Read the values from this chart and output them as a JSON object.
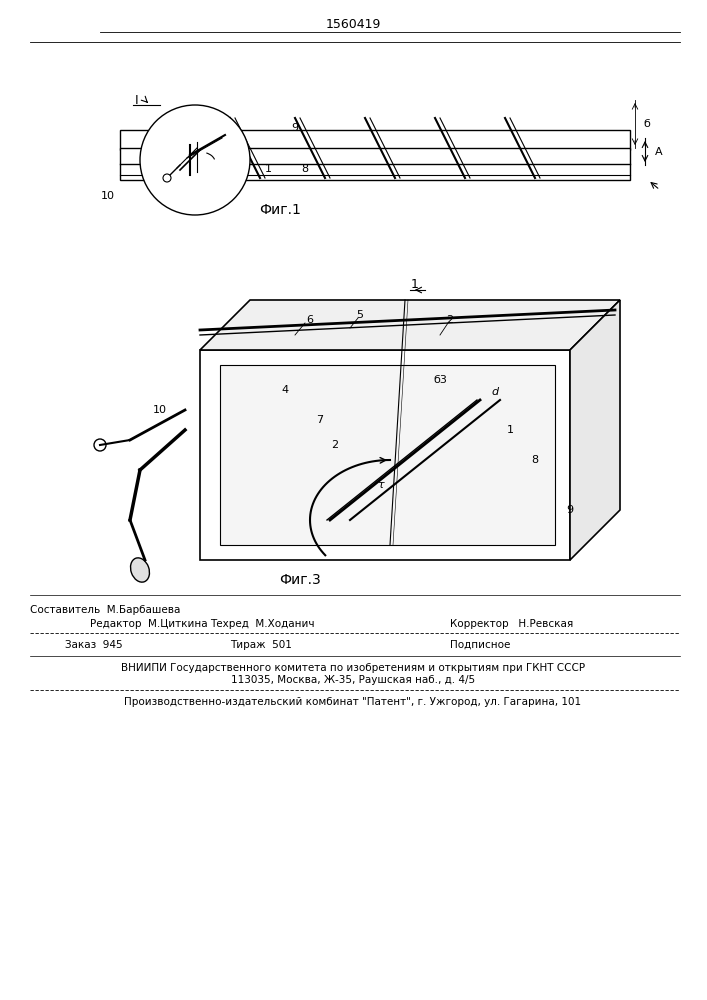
{
  "patent_number": "1560419",
  "background_color": "#ffffff",
  "fig1_caption": "Фиг.1",
  "fig3_caption": "Фиг.3",
  "editor_line": "Редактор  М.Циткина",
  "composer_line1": "Составитель  М.Барбашева",
  "techred_line": "Техред  М.Ходанич",
  "corrector_line": "Корректор   Н.Ревская",
  "order_line": "Заказ  945",
  "tirazh_line": "Тираж  501",
  "podpisnoe_line": "Подписное",
  "vniiipi_line1": "ВНИИПИ Государственного комитета по изобретениям и открытиям при ГКНТ СССР",
  "vniiipi_line2": "113035, Москва, Ж-35, Раушская наб., д. 4/5",
  "publish_line": "Производственно-издательский комбинат \"Патент\", г. Ужгород, ул. Гагарина, 101"
}
